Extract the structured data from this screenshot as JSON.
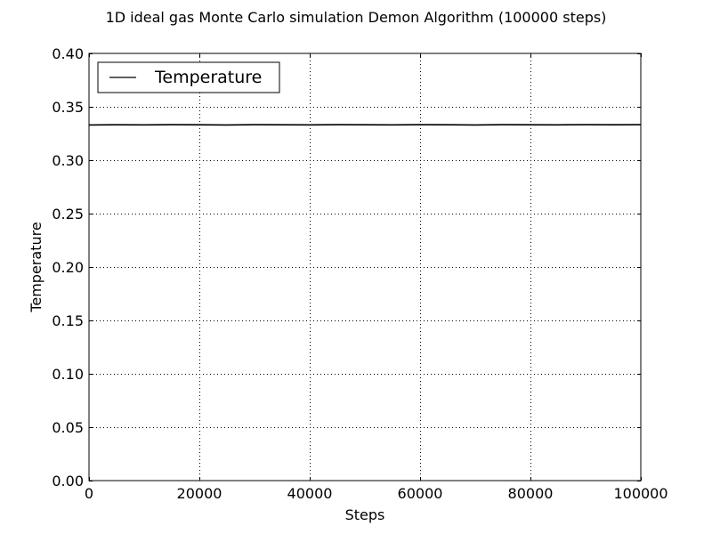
{
  "chart_data": {
    "type": "line",
    "title": "1D ideal gas Monte Carlo simulation Demon Algorithm (100000 steps)",
    "xlabel": "Steps",
    "ylabel": "Temperature",
    "xlim": [
      0,
      100000
    ],
    "ylim": [
      0,
      0.4
    ],
    "x_ticks": [
      0,
      20000,
      40000,
      60000,
      80000,
      100000
    ],
    "x_tick_labels": [
      "0",
      "20000",
      "40000",
      "60000",
      "80000",
      "100000"
    ],
    "y_ticks": [
      0,
      0.05,
      0.1,
      0.15,
      0.2,
      0.25,
      0.3,
      0.35,
      0.4
    ],
    "y_tick_labels": [
      "0.00",
      "0.05",
      "0.10",
      "0.15",
      "0.20",
      "0.25",
      "0.30",
      "0.35",
      "0.40"
    ],
    "grid": true,
    "legend_position": "top-left",
    "series": [
      {
        "name": "Temperature",
        "color": "#000000",
        "x": [
          0,
          5000,
          10000,
          15000,
          20000,
          25000,
          30000,
          35000,
          40000,
          45000,
          50000,
          55000,
          60000,
          65000,
          70000,
          75000,
          80000,
          85000,
          90000,
          95000,
          100000
        ],
        "y": [
          0.333,
          0.3332,
          0.3331,
          0.3333,
          0.3332,
          0.333,
          0.3333,
          0.3332,
          0.3331,
          0.3333,
          0.3332,
          0.3331,
          0.3333,
          0.3332,
          0.333,
          0.3333,
          0.3332,
          0.3331,
          0.3333,
          0.3332,
          0.3333
        ]
      }
    ]
  }
}
